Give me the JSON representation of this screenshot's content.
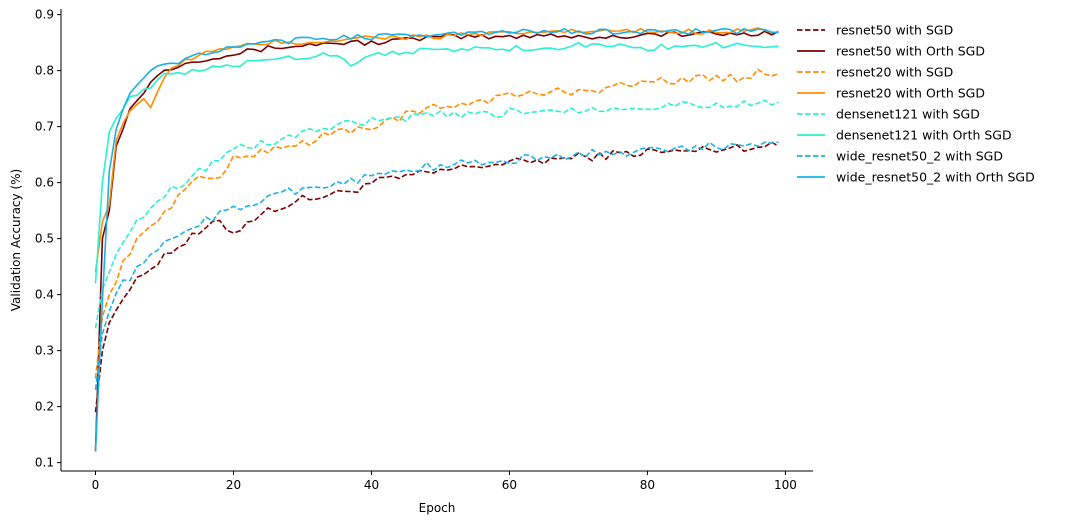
{
  "chart_data": {
    "type": "line",
    "xlabel": "Epoch",
    "ylabel": "Validation Accuracy (%)",
    "xlim": [
      -5,
      104
    ],
    "ylim": [
      0.085,
      0.91
    ],
    "xticks": [
      0,
      20,
      40,
      60,
      80,
      100
    ],
    "yticks": [
      0.1,
      0.2,
      0.3,
      0.4,
      0.5,
      0.6,
      0.7,
      0.8,
      0.9
    ],
    "grid": false,
    "legend_position": "right, outside plot",
    "series": [
      {
        "name": "resnet50 with SGD",
        "color": "#7b0000",
        "dash": "dashed",
        "points": [
          [
            0,
            0.19
          ],
          [
            1,
            0.3
          ],
          [
            2,
            0.35
          ],
          [
            3,
            0.38
          ],
          [
            5,
            0.41
          ],
          [
            8,
            0.45
          ],
          [
            10,
            0.47
          ],
          [
            15,
            0.51
          ],
          [
            18,
            0.53
          ],
          [
            20,
            0.51
          ],
          [
            22,
            0.53
          ],
          [
            25,
            0.55
          ],
          [
            30,
            0.57
          ],
          [
            35,
            0.58
          ],
          [
            38,
            0.59
          ],
          [
            40,
            0.6
          ],
          [
            45,
            0.61
          ],
          [
            50,
            0.62
          ],
          [
            55,
            0.63
          ],
          [
            60,
            0.635
          ],
          [
            65,
            0.64
          ],
          [
            70,
            0.645
          ],
          [
            75,
            0.65
          ],
          [
            80,
            0.655
          ],
          [
            85,
            0.655
          ],
          [
            90,
            0.66
          ],
          [
            95,
            0.665
          ],
          [
            99,
            0.665
          ]
        ]
      },
      {
        "name": "resnet50 with Orth SGD",
        "color": "#7b0000",
        "dash": "solid",
        "points": [
          [
            0,
            0.12
          ],
          [
            1,
            0.5
          ],
          [
            2,
            0.55
          ],
          [
            3,
            0.67
          ],
          [
            5,
            0.73
          ],
          [
            8,
            0.78
          ],
          [
            10,
            0.8
          ],
          [
            12,
            0.81
          ],
          [
            15,
            0.82
          ],
          [
            20,
            0.83
          ],
          [
            25,
            0.84
          ],
          [
            30,
            0.845
          ],
          [
            35,
            0.85
          ],
          [
            40,
            0.85
          ],
          [
            45,
            0.855
          ],
          [
            50,
            0.86
          ],
          [
            55,
            0.86
          ],
          [
            60,
            0.86
          ],
          [
            65,
            0.865
          ],
          [
            70,
            0.86
          ],
          [
            75,
            0.86
          ],
          [
            80,
            0.865
          ],
          [
            85,
            0.865
          ],
          [
            90,
            0.865
          ],
          [
            95,
            0.865
          ],
          [
            99,
            0.87
          ]
        ]
      },
      {
        "name": "resnet20 with SGD",
        "color": "#ff8c00",
        "dash": "dashed",
        "points": [
          [
            0,
            0.25
          ],
          [
            1,
            0.36
          ],
          [
            2,
            0.4
          ],
          [
            3,
            0.43
          ],
          [
            5,
            0.48
          ],
          [
            8,
            0.52
          ],
          [
            10,
            0.55
          ],
          [
            15,
            0.61
          ],
          [
            18,
            0.61
          ],
          [
            20,
            0.64
          ],
          [
            25,
            0.66
          ],
          [
            30,
            0.67
          ],
          [
            35,
            0.69
          ],
          [
            40,
            0.7
          ],
          [
            45,
            0.72
          ],
          [
            50,
            0.735
          ],
          [
            55,
            0.745
          ],
          [
            60,
            0.755
          ],
          [
            65,
            0.76
          ],
          [
            70,
            0.765
          ],
          [
            75,
            0.77
          ],
          [
            80,
            0.78
          ],
          [
            85,
            0.785
          ],
          [
            90,
            0.785
          ],
          [
            95,
            0.79
          ],
          [
            97,
            0.8
          ],
          [
            99,
            0.795
          ]
        ]
      },
      {
        "name": "resnet20 with Orth SGD",
        "color": "#ff8c00",
        "dash": "solid",
        "points": [
          [
            0,
            0.44
          ],
          [
            1,
            0.53
          ],
          [
            2,
            0.56
          ],
          [
            3,
            0.68
          ],
          [
            5,
            0.73
          ],
          [
            7,
            0.75
          ],
          [
            8,
            0.73
          ],
          [
            10,
            0.79
          ],
          [
            12,
            0.81
          ],
          [
            15,
            0.83
          ],
          [
            20,
            0.84
          ],
          [
            25,
            0.85
          ],
          [
            30,
            0.85
          ],
          [
            35,
            0.855
          ],
          [
            40,
            0.86
          ],
          [
            45,
            0.86
          ],
          [
            50,
            0.86
          ],
          [
            55,
            0.865
          ],
          [
            60,
            0.865
          ],
          [
            65,
            0.87
          ],
          [
            70,
            0.87
          ],
          [
            75,
            0.87
          ],
          [
            80,
            0.87
          ],
          [
            85,
            0.87
          ],
          [
            90,
            0.87
          ],
          [
            95,
            0.875
          ],
          [
            99,
            0.87
          ]
        ]
      },
      {
        "name": "densenet121 with SGD",
        "color": "#2af0cf",
        "dash": "dashed",
        "points": [
          [
            0,
            0.34
          ],
          [
            1,
            0.41
          ],
          [
            2,
            0.44
          ],
          [
            3,
            0.48
          ],
          [
            5,
            0.51
          ],
          [
            8,
            0.56
          ],
          [
            10,
            0.58
          ],
          [
            15,
            0.62
          ],
          [
            20,
            0.66
          ],
          [
            25,
            0.67
          ],
          [
            30,
            0.69
          ],
          [
            35,
            0.7
          ],
          [
            40,
            0.71
          ],
          [
            45,
            0.715
          ],
          [
            50,
            0.72
          ],
          [
            55,
            0.72
          ],
          [
            60,
            0.725
          ],
          [
            65,
            0.73
          ],
          [
            70,
            0.73
          ],
          [
            75,
            0.735
          ],
          [
            80,
            0.735
          ],
          [
            85,
            0.74
          ],
          [
            90,
            0.74
          ],
          [
            95,
            0.74
          ],
          [
            99,
            0.745
          ]
        ]
      },
      {
        "name": "densenet121 with Orth SGD",
        "color": "#2af0cf",
        "dash": "solid",
        "points": [
          [
            0,
            0.42
          ],
          [
            1,
            0.6
          ],
          [
            2,
            0.69
          ],
          [
            3,
            0.72
          ],
          [
            5,
            0.75
          ],
          [
            8,
            0.77
          ],
          [
            10,
            0.79
          ],
          [
            15,
            0.8
          ],
          [
            20,
            0.81
          ],
          [
            25,
            0.82
          ],
          [
            30,
            0.825
          ],
          [
            35,
            0.83
          ],
          [
            37,
            0.81
          ],
          [
            40,
            0.83
          ],
          [
            45,
            0.835
          ],
          [
            50,
            0.835
          ],
          [
            55,
            0.84
          ],
          [
            60,
            0.84
          ],
          [
            65,
            0.84
          ],
          [
            70,
            0.845
          ],
          [
            75,
            0.845
          ],
          [
            80,
            0.84
          ],
          [
            85,
            0.845
          ],
          [
            90,
            0.845
          ],
          [
            95,
            0.845
          ],
          [
            99,
            0.845
          ]
        ]
      },
      {
        "name": "wide_resnet50_2 with SGD",
        "color": "#1ab2e6",
        "dash": "dashed",
        "points": [
          [
            0,
            0.23
          ],
          [
            1,
            0.33
          ],
          [
            2,
            0.37
          ],
          [
            3,
            0.41
          ],
          [
            5,
            0.43
          ],
          [
            8,
            0.47
          ],
          [
            10,
            0.49
          ],
          [
            15,
            0.53
          ],
          [
            20,
            0.55
          ],
          [
            22,
            0.56
          ],
          [
            25,
            0.575
          ],
          [
            30,
            0.59
          ],
          [
            35,
            0.6
          ],
          [
            40,
            0.61
          ],
          [
            45,
            0.625
          ],
          [
            50,
            0.63
          ],
          [
            55,
            0.635
          ],
          [
            60,
            0.64
          ],
          [
            65,
            0.645
          ],
          [
            70,
            0.65
          ],
          [
            75,
            0.655
          ],
          [
            80,
            0.655
          ],
          [
            85,
            0.66
          ],
          [
            90,
            0.665
          ],
          [
            95,
            0.67
          ],
          [
            99,
            0.675
          ]
        ]
      },
      {
        "name": "wide_resnet50_2 with Orth SGD",
        "color": "#1ab2e6",
        "dash": "solid",
        "points": [
          [
            0,
            0.12
          ],
          [
            1,
            0.39
          ],
          [
            2,
            0.62
          ],
          [
            3,
            0.7
          ],
          [
            5,
            0.76
          ],
          [
            7,
            0.79
          ],
          [
            10,
            0.81
          ],
          [
            13,
            0.82
          ],
          [
            15,
            0.83
          ],
          [
            20,
            0.84
          ],
          [
            25,
            0.85
          ],
          [
            30,
            0.855
          ],
          [
            35,
            0.86
          ],
          [
            40,
            0.86
          ],
          [
            45,
            0.865
          ],
          [
            50,
            0.865
          ],
          [
            55,
            0.865
          ],
          [
            60,
            0.87
          ],
          [
            65,
            0.87
          ],
          [
            70,
            0.87
          ],
          [
            75,
            0.87
          ],
          [
            80,
            0.87
          ],
          [
            85,
            0.87
          ],
          [
            90,
            0.87
          ],
          [
            95,
            0.87
          ],
          [
            99,
            0.87
          ]
        ]
      }
    ]
  }
}
